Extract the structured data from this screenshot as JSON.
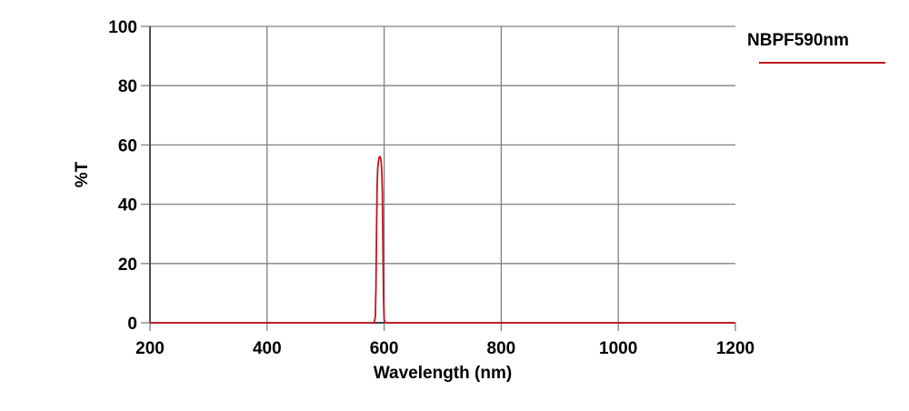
{
  "chart_data": {
    "type": "line",
    "title": "",
    "xlabel": "Wavelength (nm)",
    "ylabel": "%T",
    "xlim": [
      200,
      1200
    ],
    "ylim": [
      0,
      100
    ],
    "x_ticks": [
      200,
      400,
      600,
      800,
      1000,
      1200
    ],
    "y_ticks": [
      0,
      20,
      40,
      60,
      80,
      100
    ],
    "grid": true,
    "legend_position": "top-right, outside plot",
    "series": [
      {
        "name": "NBPF590nm",
        "color": "#c0161c",
        "x": [
          200,
          560,
          583,
          585,
          586,
          587,
          588,
          589,
          590,
          591,
          592,
          593,
          594,
          595,
          596,
          597,
          598,
          599,
          600,
          602,
          620,
          800,
          1000,
          1200
        ],
        "y": [
          0,
          0,
          0,
          2,
          12,
          30,
          46,
          52,
          54,
          55.5,
          56,
          56,
          55.5,
          54,
          51,
          44,
          25,
          8,
          1,
          0,
          0,
          0,
          0,
          0
        ]
      }
    ]
  },
  "legend": {
    "label": "NBPF590nm",
    "color": "#c0161c"
  },
  "colors": {
    "grid": "#808080",
    "axis": "#000000",
    "series": "#c0161c"
  }
}
